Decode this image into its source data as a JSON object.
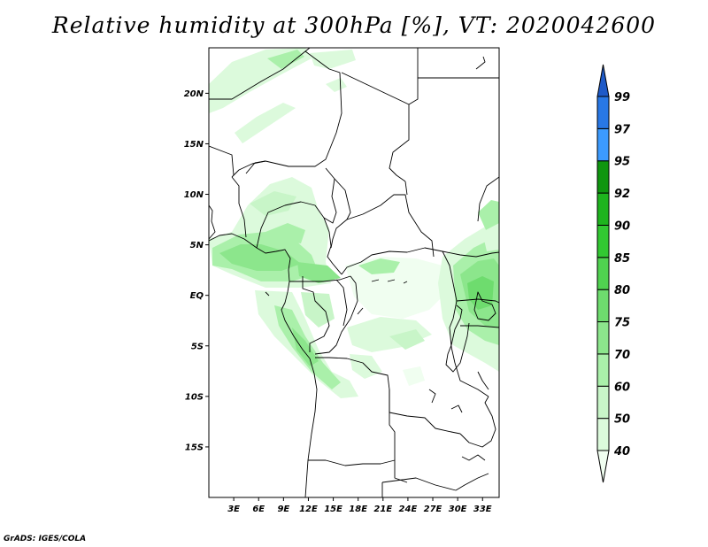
{
  "title": "Relative humidity at 300hPa [%], VT: 2020042600",
  "credit": "GrADS: IGES/COLA",
  "chart_data": {
    "type": "heatmap",
    "variable": "Relative humidity",
    "level": "300hPa",
    "units": "%",
    "valid_time": "2020042600",
    "lon_ticks": [
      "3E",
      "6E",
      "9E",
      "12E",
      "15E",
      "18E",
      "21E",
      "24E",
      "27E",
      "30E",
      "33E"
    ],
    "lat_ticks": [
      "20N",
      "15N",
      "10N",
      "5N",
      "EQ",
      "5S",
      "10S",
      "15S"
    ],
    "lon_range": [
      0,
      35
    ],
    "lat_range": [
      -20,
      24.5
    ],
    "colorbar": {
      "levels": [
        "40",
        "50",
        "60",
        "70",
        "75",
        "80",
        "85",
        "90",
        "92",
        "95",
        "97",
        "99"
      ],
      "colors": [
        "#f0fef0",
        "#dcfadc",
        "#c8f5c8",
        "#aaf0aa",
        "#8ce68c",
        "#6edc6e",
        "#50d250",
        "#32c832",
        "#1eb41e",
        "#0f960f",
        "#3c9bff",
        "#2878e6",
        "#1e5ac8"
      ]
    }
  }
}
